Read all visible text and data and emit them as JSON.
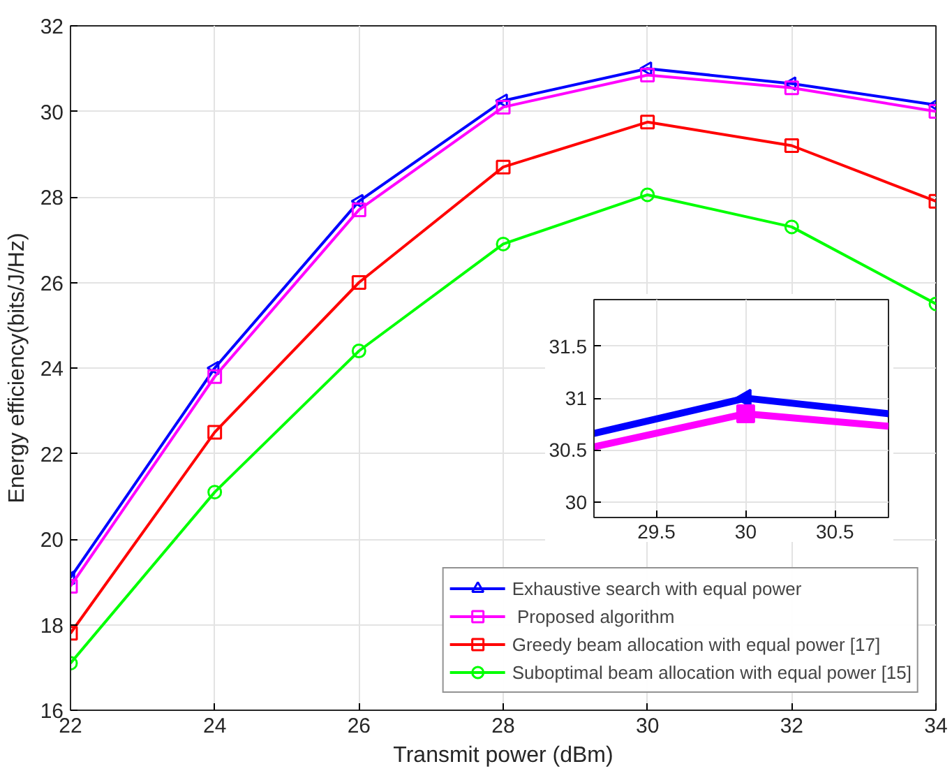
{
  "chart_data": [
    {
      "type": "line",
      "xlabel": "Transmit power (dBm)",
      "ylabel": "Energy efficiency(bits/J/Hz)",
      "x": [
        22,
        24,
        26,
        28,
        30,
        32,
        34
      ],
      "xlim": [
        22,
        34
      ],
      "ylim": [
        16,
        32
      ],
      "xticks": [
        22,
        24,
        26,
        28,
        30,
        32,
        34
      ],
      "yticks": [
        16,
        18,
        20,
        22,
        24,
        26,
        28,
        30,
        32
      ],
      "grid": true,
      "legend": "bottom right",
      "series": [
        {
          "name": "Exhaustive search with equal power",
          "color": "#0000ff",
          "marker": "triangle",
          "values": [
            19.1,
            24.0,
            27.9,
            30.25,
            31.0,
            30.65,
            30.15
          ]
        },
        {
          "name": " Proposed algorithm",
          "color": "#ff00ff",
          "marker": "square",
          "values": [
            18.9,
            23.8,
            27.7,
            30.1,
            30.85,
            30.55,
            30.0
          ]
        },
        {
          "name": "Greedy beam allocation with equal power [17]",
          "color": "#ff0000",
          "marker": "square",
          "values": [
            17.8,
            22.5,
            26.0,
            28.7,
            29.75,
            29.2,
            27.9
          ]
        },
        {
          "name": "Suboptimal beam allocation with equal power [15]",
          "color": "#00ff00",
          "marker": "circle",
          "values": [
            17.1,
            21.1,
            24.4,
            26.9,
            28.05,
            27.3,
            25.5
          ]
        }
      ]
    },
    {
      "type": "line",
      "x": [
        29.15,
        30,
        30.8
      ],
      "xlim": [
        29.15,
        30.8
      ],
      "ylim": [
        29.85,
        31.95
      ],
      "xticks": [
        29.5,
        30,
        30.5
      ],
      "yticks": [
        30,
        30.5,
        31,
        31.5
      ],
      "grid": true,
      "series": [
        {
          "color": "#0000ff",
          "values": [
            30.66,
            31.0,
            30.85
          ]
        },
        {
          "color": "#ff00ff",
          "values": [
            30.53,
            30.85,
            30.73
          ]
        },
        {
          "type": "scatter",
          "x": [
            30
          ],
          "color": "#0000ff",
          "marker": "triangle",
          "values": [
            31.0
          ]
        },
        {
          "type": "scatter",
          "x": [
            30
          ],
          "color": "#ff00ff",
          "marker": "square",
          "values": [
            30.85
          ]
        }
      ]
    }
  ]
}
